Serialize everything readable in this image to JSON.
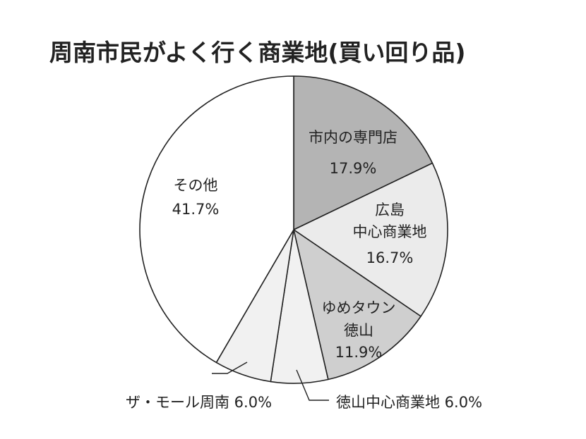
{
  "chart_data": {
    "type": "pie",
    "title": "周南市民がよく行く商業地(買い回り品)",
    "slices": [
      {
        "label_lines": [
          "市内の専門店"
        ],
        "value": 17.9,
        "value_label": "17.9%",
        "color": "#b4b4b4"
      },
      {
        "label_lines": [
          "広島",
          "中心商業地"
        ],
        "value": 16.7,
        "value_label": "16.7%",
        "color": "#ebebeb"
      },
      {
        "label_lines": [
          "ゆめタウン",
          "徳山"
        ],
        "value": 11.9,
        "value_label": "11.9%",
        "color": "#cfcfcf"
      },
      {
        "label_lines": [
          "徳山中心商業地 6.0%"
        ],
        "value": 6.0,
        "value_label": "",
        "color": "#f1f1f1"
      },
      {
        "label_lines": [
          "ザ・モール周南 6.0%"
        ],
        "value": 6.0,
        "value_label": "",
        "color": "#f1f1f1"
      },
      {
        "label_lines": [
          "その他"
        ],
        "value": 41.7,
        "value_label": "41.7%",
        "color": "#ffffff"
      }
    ]
  }
}
